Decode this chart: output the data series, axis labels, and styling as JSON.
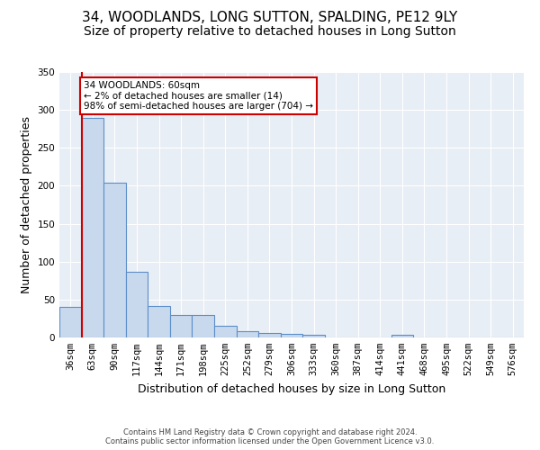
{
  "title": "34, WOODLANDS, LONG SUTTON, SPALDING, PE12 9LY",
  "subtitle": "Size of property relative to detached houses in Long Sutton",
  "xlabel": "Distribution of detached houses by size in Long Sutton",
  "ylabel": "Number of detached properties",
  "footer_line1": "Contains HM Land Registry data © Crown copyright and database right 2024.",
  "footer_line2": "Contains public sector information licensed under the Open Government Licence v3.0.",
  "categories": [
    "36sqm",
    "63sqm",
    "90sqm",
    "117sqm",
    "144sqm",
    "171sqm",
    "198sqm",
    "225sqm",
    "252sqm",
    "279sqm",
    "306sqm",
    "333sqm",
    "360sqm",
    "387sqm",
    "414sqm",
    "441sqm",
    "468sqm",
    "495sqm",
    "522sqm",
    "549sqm",
    "576sqm"
  ],
  "values": [
    40,
    290,
    204,
    87,
    42,
    30,
    30,
    16,
    8,
    6,
    5,
    4,
    0,
    0,
    0,
    4,
    0,
    0,
    0,
    0,
    0
  ],
  "bar_color": "#c9d9ed",
  "bar_edge_color": "#5b8ec9",
  "property_line_x": 0.5,
  "property_line_color": "#cc0000",
  "annotation_text": "34 WOODLANDS: 60sqm\n← 2% of detached houses are smaller (14)\n98% of semi-detached houses are larger (704) →",
  "annotation_box_color": "#ffffff",
  "annotation_box_edge": "#cc0000",
  "ylim": [
    0,
    350
  ],
  "yticks": [
    0,
    50,
    100,
    150,
    200,
    250,
    300,
    350
  ],
  "plot_bg_color": "#e8eef5",
  "title_fontsize": 11,
  "subtitle_fontsize": 10,
  "xlabel_fontsize": 9,
  "ylabel_fontsize": 9,
  "tick_fontsize": 7.5,
  "annotation_fontsize": 7.5
}
